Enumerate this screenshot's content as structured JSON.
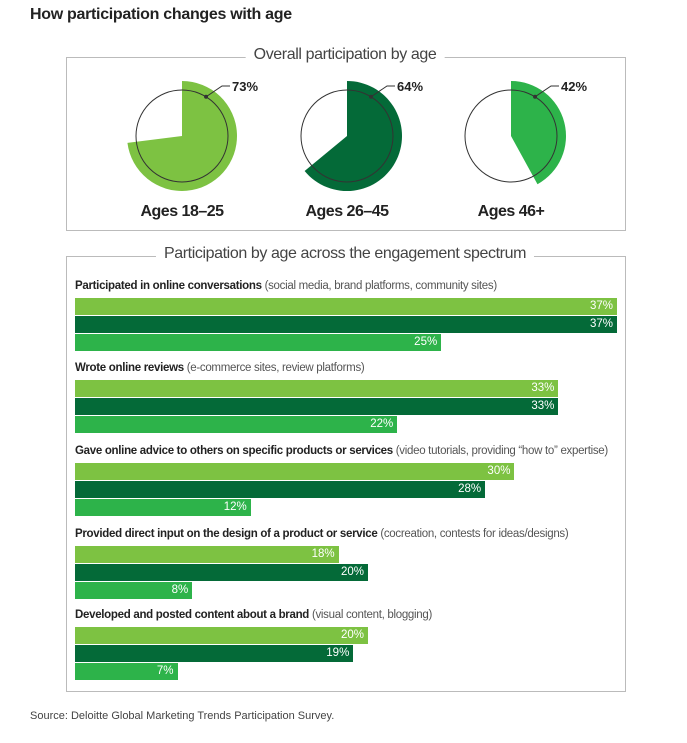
{
  "title": "How participation changes with age",
  "source": "Source: Deloitte Global Marketing Trends Participation Survey.",
  "colors": {
    "ages_18_25": "#7dc242",
    "ages_26_45": "#046a38",
    "ages_46_plus": "#2db34a"
  },
  "chart_data": [
    {
      "type": "pie",
      "title": "Overall participation by age",
      "categories": [
        "Ages 18–25",
        "Ages 26–45",
        "Ages 46+"
      ],
      "values": [
        73,
        64,
        42
      ],
      "labels": [
        "73%",
        "64%",
        "42%"
      ]
    },
    {
      "type": "bar",
      "orientation": "horizontal",
      "title": "Participation by age across the engagement spectrum",
      "groups": [
        {
          "label": "Participated in online conversations",
          "sub": "(social media, brand platforms, community sites)",
          "values": [
            37,
            37,
            25
          ]
        },
        {
          "label": "Wrote online reviews",
          "sub": "(e-commerce sites, review platforms)",
          "values": [
            33,
            33,
            22
          ]
        },
        {
          "label": "Gave online advice to others on specific products or services",
          "sub": "(video tutorials, providing “how to” expertise)",
          "values": [
            30,
            28,
            12
          ]
        },
        {
          "label": "Provided direct input on the design of a product or service",
          "sub": "(cocreation, contests for ideas/designs)",
          "values": [
            18,
            20,
            8
          ]
        },
        {
          "label": "Developed and posted content about a brand",
          "sub": "(visual content, blogging)",
          "values": [
            20,
            19,
            7
          ]
        }
      ],
      "series_order": [
        "Ages 18–25",
        "Ages 26–45",
        "Ages 46+"
      ]
    }
  ]
}
